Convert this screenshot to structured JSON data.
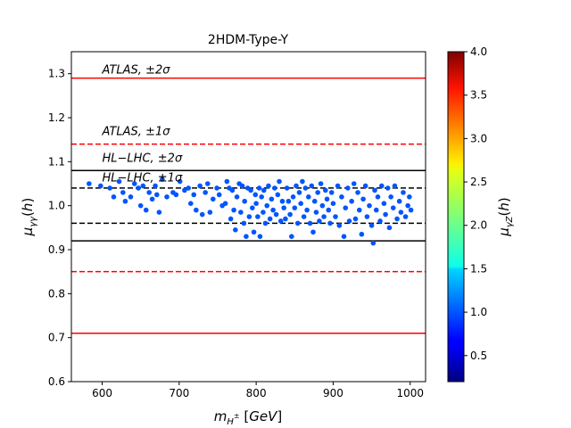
{
  "chart_data": {
    "type": "scatter",
    "title": "2HDM-Type-Y",
    "xlabel": "m_{H^±} [GeV]",
    "ylabel": "μ_{γγ}(h)",
    "xlim": [
      560,
      1020
    ],
    "ylim": [
      0.6,
      1.35
    ],
    "x_ticks": [
      600,
      700,
      800,
      900,
      1000
    ],
    "y_ticks": [
      0.6,
      0.7,
      0.8,
      0.9,
      1.0,
      1.1,
      1.2,
      1.3
    ],
    "x_tick_labels": [
      "600",
      "700",
      "800",
      "900",
      "1000"
    ],
    "y_tick_labels": [
      "0.6",
      "0.7",
      "0.8",
      "0.9",
      "1.0",
      "1.1",
      "1.2",
      "1.3"
    ],
    "colorbar": {
      "label": "μ_{γZ}(h)",
      "range": [
        0.2,
        4.0
      ],
      "ticks": [
        0.5,
        1.0,
        1.5,
        2.0,
        2.5,
        3.0,
        3.5,
        4.0
      ],
      "tick_labels": [
        "0.5",
        "1.0",
        "1.5",
        "2.0",
        "2.5",
        "3.0",
        "3.5",
        "4.0"
      ],
      "colormap": "jet"
    },
    "reference_lines": [
      {
        "name": "atlas-2sigma-upper",
        "y": 1.29,
        "color": "#ff0000",
        "style": "solid"
      },
      {
        "name": "atlas-1sigma-upper",
        "y": 1.14,
        "color": "#ff0000",
        "style": "dashed"
      },
      {
        "name": "hllhc-2sigma-upper",
        "y": 1.08,
        "color": "#000000",
        "style": "solid"
      },
      {
        "name": "hllhc-1sigma-upper",
        "y": 1.04,
        "color": "#000000",
        "style": "dashed"
      },
      {
        "name": "hllhc-1sigma-lower",
        "y": 0.96,
        "color": "#000000",
        "style": "dashed"
      },
      {
        "name": "hllhc-2sigma-lower",
        "y": 0.92,
        "color": "#000000",
        "style": "solid"
      },
      {
        "name": "atlas-1sigma-lower",
        "y": 0.85,
        "color": "#ff0000",
        "style": "dashed"
      },
      {
        "name": "atlas-2sigma-lower",
        "y": 0.71,
        "color": "#ff0000",
        "style": "solid"
      }
    ],
    "annotations": [
      {
        "name": "label-atlas-2sigma",
        "text": "ATLAS, ±2σ",
        "x": 600,
        "y": 1.3
      },
      {
        "name": "label-atlas-1sigma",
        "text": "ATLAS, ±1σ",
        "x": 600,
        "y": 1.16
      },
      {
        "name": "label-hllhc-2sigma",
        "text": "HL−LHC, ±2σ",
        "x": 600,
        "y": 1.1
      },
      {
        "name": "label-hllhc-1sigma",
        "text": "HL−LHC, ±1σ",
        "x": 600,
        "y": 1.055
      }
    ],
    "series": [
      {
        "name": "scan points",
        "color": "#0055ff",
        "points": [
          [
            583,
            1.05
          ],
          [
            598,
            1.045
          ],
          [
            610,
            1.04
          ],
          [
            615,
            1.02
          ],
          [
            622,
            1.055
          ],
          [
            627,
            1.03
          ],
          [
            630,
            1.01
          ],
          [
            637,
            1.02
          ],
          [
            642,
            1.05
          ],
          [
            647,
            1.04
          ],
          [
            650,
            1.0
          ],
          [
            653,
            1.045
          ],
          [
            657,
            0.99
          ],
          [
            661,
            1.03
          ],
          [
            665,
            1.015
          ],
          [
            669,
            1.045
          ],
          [
            671,
            1.025
          ],
          [
            674,
            0.985
          ],
          [
            678,
            1.06
          ],
          [
            684,
            1.02
          ],
          [
            692,
            1.03
          ],
          [
            696,
            1.025
          ],
          [
            701,
            1.055
          ],
          [
            707,
            1.035
          ],
          [
            712,
            1.04
          ],
          [
            715,
            1.005
          ],
          [
            719,
            1.025
          ],
          [
            722,
            0.99
          ],
          [
            727,
            1.045
          ],
          [
            730,
            0.98
          ],
          [
            734,
            1.03
          ],
          [
            737,
            1.05
          ],
          [
            740,
            0.985
          ],
          [
            744,
            1.015
          ],
          [
            749,
            1.04
          ],
          [
            752,
            1.025
          ],
          [
            756,
            1.0
          ],
          [
            760,
            1.005
          ],
          [
            762,
            1.055
          ],
          [
            765,
            1.04
          ],
          [
            767,
            0.97
          ],
          [
            769,
            1.035
          ],
          [
            771,
            0.99
          ],
          [
            773,
            0.945
          ],
          [
            775,
            1.02
          ],
          [
            778,
            1.05
          ],
          [
            780,
            0.985
          ],
          [
            782,
            1.045
          ],
          [
            784,
            0.96
          ],
          [
            785,
            1.01
          ],
          [
            787,
            0.93
          ],
          [
            789,
            1.04
          ],
          [
            791,
            0.975
          ],
          [
            793,
            1.035
          ],
          [
            795,
            0.995
          ],
          [
            797,
            0.94
          ],
          [
            799,
            1.025
          ],
          [
            800,
            1.005
          ],
          [
            802,
            0.975
          ],
          [
            804,
            1.04
          ],
          [
            805,
            0.93
          ],
          [
            807,
            1.02
          ],
          [
            809,
            0.985
          ],
          [
            810,
            1.035
          ],
          [
            812,
            0.96
          ],
          [
            814,
            1.0
          ],
          [
            816,
            1.045
          ],
          [
            818,
            0.97
          ],
          [
            820,
            1.015
          ],
          [
            822,
            0.99
          ],
          [
            824,
            1.04
          ],
          [
            826,
            0.98
          ],
          [
            828,
            1.025
          ],
          [
            830,
            1.055
          ],
          [
            832,
            0.965
          ],
          [
            834,
            1.01
          ],
          [
            836,
            0.995
          ],
          [
            838,
            0.97
          ],
          [
            840,
            1.04
          ],
          [
            842,
            1.01
          ],
          [
            844,
            0.98
          ],
          [
            846,
            0.93
          ],
          [
            848,
            1.02
          ],
          [
            850,
            0.995
          ],
          [
            852,
            1.045
          ],
          [
            854,
            0.96
          ],
          [
            856,
            1.03
          ],
          [
            858,
            1.005
          ],
          [
            860,
            1.055
          ],
          [
            862,
            0.975
          ],
          [
            864,
            1.04
          ],
          [
            866,
            0.99
          ],
          [
            868,
            1.02
          ],
          [
            870,
            0.96
          ],
          [
            872,
            1.045
          ],
          [
            874,
            0.94
          ],
          [
            876,
            1.01
          ],
          [
            878,
            0.985
          ],
          [
            880,
            1.03
          ],
          [
            882,
            0.965
          ],
          [
            884,
            1.05
          ],
          [
            886,
            1.0
          ],
          [
            888,
            0.975
          ],
          [
            890,
            1.035
          ],
          [
            892,
            1.015
          ],
          [
            894,
            0.99
          ],
          [
            896,
            0.96
          ],
          [
            898,
            1.03
          ],
          [
            900,
            1.005
          ],
          [
            903,
            0.975
          ],
          [
            906,
            1.045
          ],
          [
            908,
            0.955
          ],
          [
            911,
            1.02
          ],
          [
            914,
            0.93
          ],
          [
            916,
            0.995
          ],
          [
            919,
            1.04
          ],
          [
            921,
            0.965
          ],
          [
            924,
            1.01
          ],
          [
            927,
            1.05
          ],
          [
            929,
            0.97
          ],
          [
            932,
            1.03
          ],
          [
            934,
            0.99
          ],
          [
            937,
            0.935
          ],
          [
            939,
            1.015
          ],
          [
            942,
            1.045
          ],
          [
            944,
            0.975
          ],
          [
            947,
            1.0
          ],
          [
            950,
            0.955
          ],
          [
            952,
            0.915
          ],
          [
            954,
            1.035
          ],
          [
            956,
            0.99
          ],
          [
            958,
            1.02
          ],
          [
            961,
            0.965
          ],
          [
            963,
            1.045
          ],
          [
            966,
            1.005
          ],
          [
            968,
            0.98
          ],
          [
            971,
            1.04
          ],
          [
            973,
            0.95
          ],
          [
            975,
            1.02
          ],
          [
            978,
            0.995
          ],
          [
            980,
            1.045
          ],
          [
            983,
            0.97
          ],
          [
            986,
            1.01
          ],
          [
            988,
            0.985
          ],
          [
            991,
            1.03
          ],
          [
            994,
            0.975
          ],
          [
            997,
            1.0
          ],
          [
            999,
            1.02
          ],
          [
            1001,
            0.99
          ]
        ]
      }
    ]
  }
}
